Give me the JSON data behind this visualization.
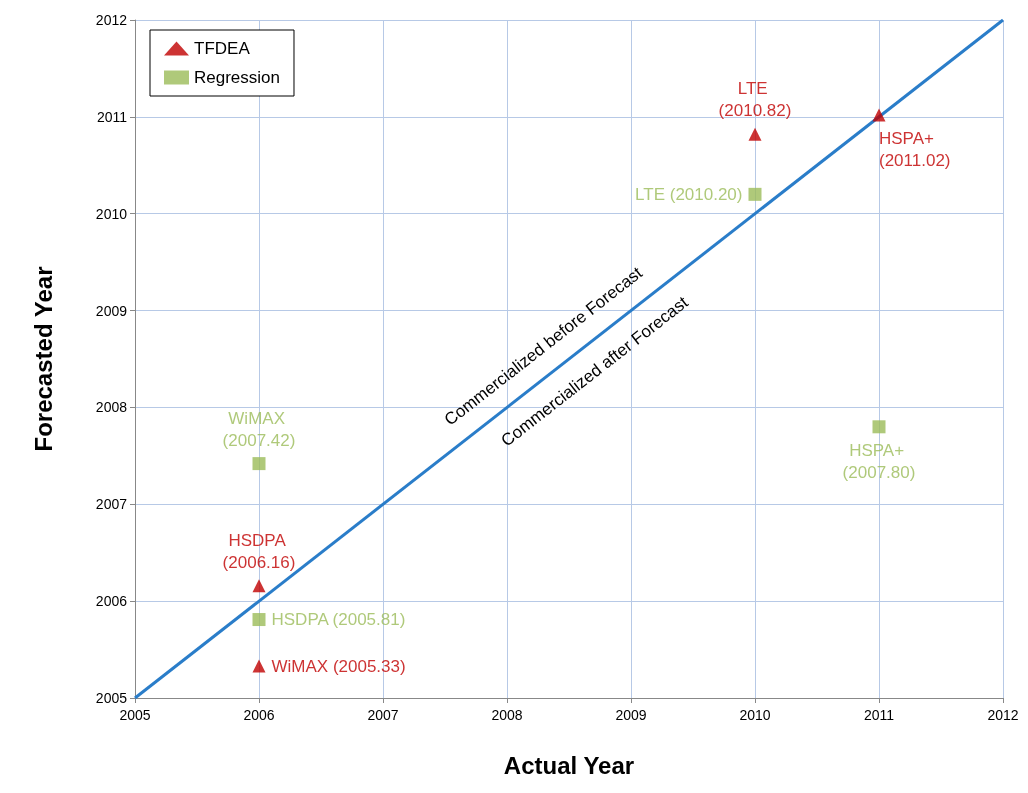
{
  "chart_data": {
    "type": "scatter",
    "xlabel": "Actual Year",
    "ylabel": "Forecasted Year",
    "xlim": [
      2005,
      2012
    ],
    "xticks": [
      2005,
      2006,
      2007,
      2008,
      2009,
      2010,
      2011,
      2012
    ],
    "ylim": [
      2005,
      2012
    ],
    "yticks": [
      2005,
      2006,
      2007,
      2008,
      2009,
      2010,
      2011,
      2012
    ],
    "grid": true,
    "legend": "top left",
    "series": [
      {
        "name": "TFDEA",
        "color": "#c00000",
        "marker": "triangle",
        "x": [
          2006,
          2006,
          2010,
          2011
        ],
        "values": [
          2006.16,
          2005.33,
          2010.82,
          2011.02
        ],
        "value_labels": [
          "HSDPA (2006.16)",
          "WiMAX (2005.33)",
          "LTE (2010.82)",
          "HSPA+ (2011.02)"
        ]
      },
      {
        "name": "Regression",
        "color": "#9bbb59",
        "marker": "square",
        "x": [
          2006,
          2006,
          2010,
          2011
        ],
        "values": [
          2007.42,
          2005.81,
          2010.2,
          2007.8
        ],
        "value_labels": [
          "WiMAX (2007.42)",
          "HSDPA (2005.81)",
          "LTE (2010.20)",
          "HSPA+ (2007.80)"
        ]
      },
      {
        "type": "line",
        "color": "#2a7dc9",
        "marker": "none",
        "x": [
          2005,
          2012
        ],
        "values": [
          2005,
          2012
        ]
      }
    ],
    "annotations": [
      "Commercialized before Forecast",
      "Commercialized after Forecast"
    ]
  }
}
